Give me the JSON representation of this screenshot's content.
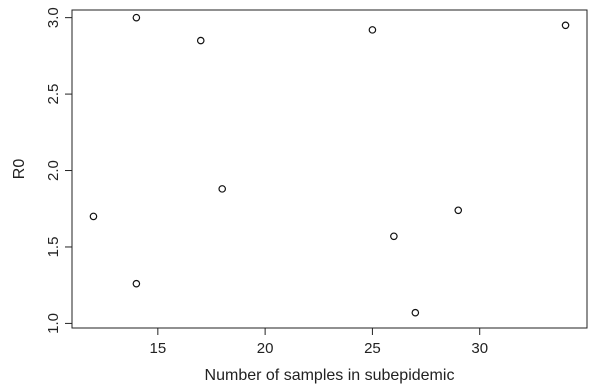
{
  "chart_data": {
    "type": "scatter",
    "title": "",
    "xlabel": "Number of samples in subepidemic",
    "ylabel": "R0",
    "xlim": [
      11,
      35
    ],
    "ylim": [
      0.97,
      3.05
    ],
    "x_ticks": [
      15,
      20,
      25,
      30
    ],
    "x_tick_labels": [
      "15",
      "20",
      "25",
      "30"
    ],
    "y_ticks": [
      1.0,
      1.5,
      2.0,
      2.5,
      3.0
    ],
    "y_tick_labels": [
      "1.0",
      "1.5",
      "2.0",
      "2.5",
      "3.0"
    ],
    "grid": false,
    "marker": "open-circle",
    "points": [
      {
        "x": 12,
        "y": 1.7
      },
      {
        "x": 14,
        "y": 3.0
      },
      {
        "x": 14,
        "y": 1.26
      },
      {
        "x": 17,
        "y": 2.85
      },
      {
        "x": 18,
        "y": 1.88
      },
      {
        "x": 25,
        "y": 2.92
      },
      {
        "x": 26,
        "y": 1.57
      },
      {
        "x": 27,
        "y": 1.07
      },
      {
        "x": 29,
        "y": 1.74
      },
      {
        "x": 34,
        "y": 2.95
      }
    ],
    "colors": {
      "axis": "#222222",
      "marker": "#111111"
    }
  }
}
